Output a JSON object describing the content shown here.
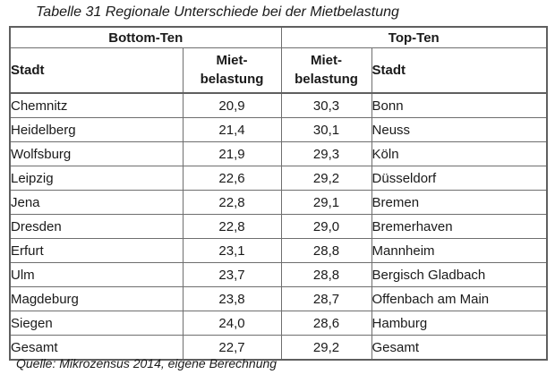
{
  "title": "Tabelle 31 Regionale Unterschiede bei der Mietbelastung",
  "source": "Quelle: Mikrozensus 2014, eigene Berechnung",
  "colors": {
    "background": "#ffffff",
    "text": "#1a1a1a",
    "grid_border": "#6e6e6e",
    "outer_border": "#5f5f5f"
  },
  "table": {
    "group_headers": {
      "bottom": "Bottom-Ten",
      "top": "Top-Ten"
    },
    "column_headers": {
      "bottom_city": "Stadt",
      "bottom_value_line1": "Miet-",
      "bottom_value_line2": "belastung",
      "top_value_line1": "Miet-",
      "top_value_line2": "belastung",
      "top_city": "Stadt"
    },
    "rows": [
      {
        "bottom_city": "Chemnitz",
        "bottom_value": "20,9",
        "top_value": "30,3",
        "top_city": "Bonn"
      },
      {
        "bottom_city": "Heidelberg",
        "bottom_value": "21,4",
        "top_value": "30,1",
        "top_city": "Neuss"
      },
      {
        "bottom_city": "Wolfsburg",
        "bottom_value": "21,9",
        "top_value": "29,3",
        "top_city": "Köln"
      },
      {
        "bottom_city": "Leipzig",
        "bottom_value": "22,6",
        "top_value": "29,2",
        "top_city": "Düsseldorf"
      },
      {
        "bottom_city": "Jena",
        "bottom_value": "22,8",
        "top_value": "29,1",
        "top_city": "Bremen"
      },
      {
        "bottom_city": "Dresden",
        "bottom_value": "22,8",
        "top_value": "29,0",
        "top_city": "Bremerhaven"
      },
      {
        "bottom_city": "Erfurt",
        "bottom_value": "23,1",
        "top_value": "28,8",
        "top_city": "Mannheim"
      },
      {
        "bottom_city": "Ulm",
        "bottom_value": "23,7",
        "top_value": "28,8",
        "top_city": "Bergisch Gladbach"
      },
      {
        "bottom_city": "Magdeburg",
        "bottom_value": "23,8",
        "top_value": "28,7",
        "top_city": "Offenbach am Main"
      },
      {
        "bottom_city": "Siegen",
        "bottom_value": "24,0",
        "top_value": "28,6",
        "top_city": "Hamburg"
      },
      {
        "bottom_city": "Gesamt",
        "bottom_value": "22,7",
        "top_value": "29,2",
        "top_city": "Gesamt"
      }
    ]
  }
}
